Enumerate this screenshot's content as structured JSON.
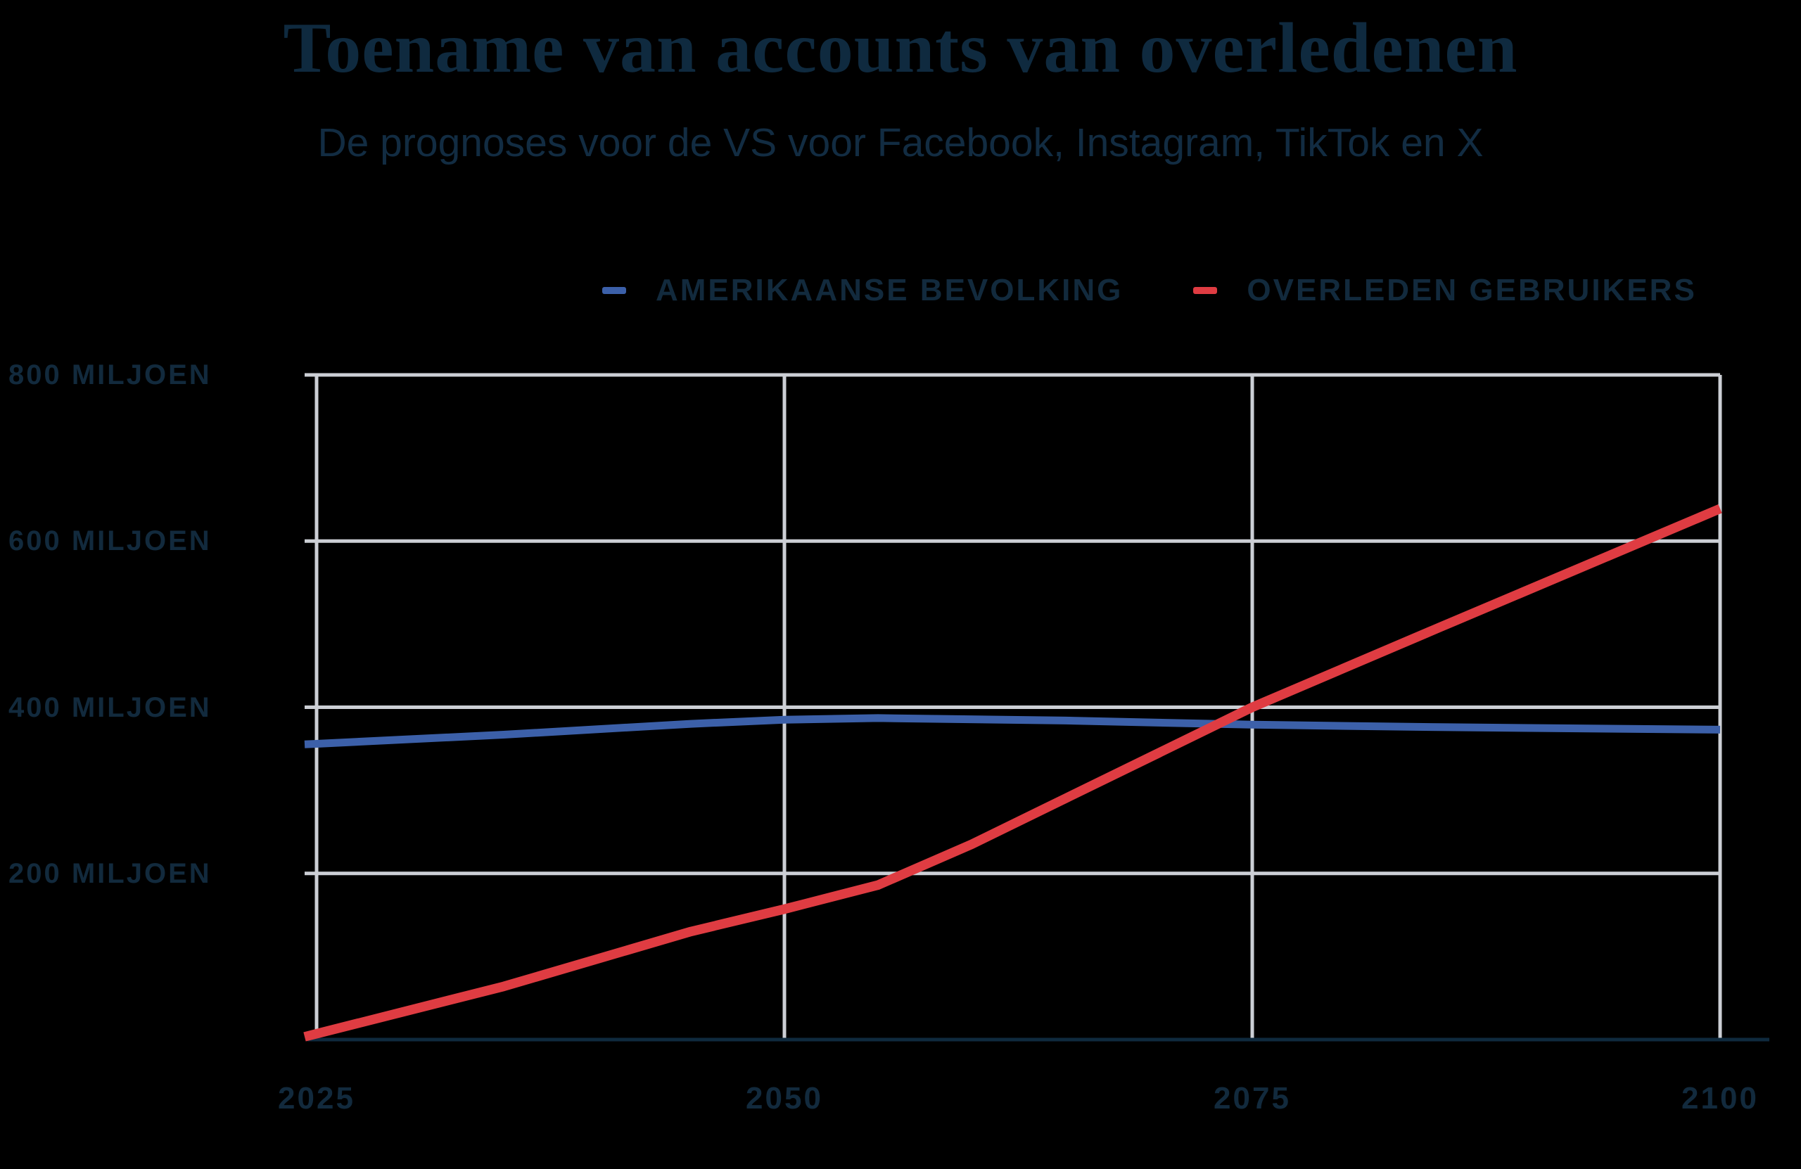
{
  "header": {
    "title": "Toename van accounts van overledenen",
    "subtitle": "De prognoses voor de VS voor Facebook, Instagram, TikTok en X"
  },
  "chart_data": {
    "type": "line",
    "title": "Toename van accounts van overledenen",
    "subtitle": "De prognoses voor de VS voor Facebook, Instagram, TikTok en X",
    "unit": "miljoen",
    "xlim": [
      2025,
      2100
    ],
    "ylim": [
      0,
      800
    ],
    "grid": true,
    "legend_position": "top",
    "xticks": [
      {
        "value": 2025,
        "label": "2025"
      },
      {
        "value": 2050,
        "label": "2050"
      },
      {
        "value": 2075,
        "label": "2075"
      },
      {
        "value": 2100,
        "label": "2100"
      }
    ],
    "yticks": [
      {
        "value": 800,
        "label": "800 MILJOEN"
      },
      {
        "value": 600,
        "label": "600 MILJOEN"
      },
      {
        "value": 400,
        "label": "400 MILJOEN"
      },
      {
        "value": 200,
        "label": "200 MILJOEN"
      }
    ],
    "series": [
      {
        "name": "AMERIKAANSE BEVOLKING",
        "color": "#3c60a9",
        "x": [
          2025,
          2035,
          2045,
          2050,
          2055,
          2065,
          2075,
          2085,
          2100
        ],
        "values": [
          356,
          367,
          380,
          385,
          387,
          384,
          379,
          376,
          373
        ]
      },
      {
        "name": "OVERLEDEN GEBRUIKERS",
        "color": "#df3c42",
        "x": [
          2025,
          2035,
          2045,
          2050,
          2055,
          2060,
          2065,
          2070,
          2075,
          2085,
          2100
        ],
        "values": [
          7,
          64,
          130,
          157,
          186,
          235,
          290,
          345,
          400,
          496,
          639
        ]
      }
    ],
    "colors": {
      "background": "#000000",
      "ink": "#122a3d",
      "grid": "#cccfd5",
      "axis": "#0f2a3e"
    }
  }
}
